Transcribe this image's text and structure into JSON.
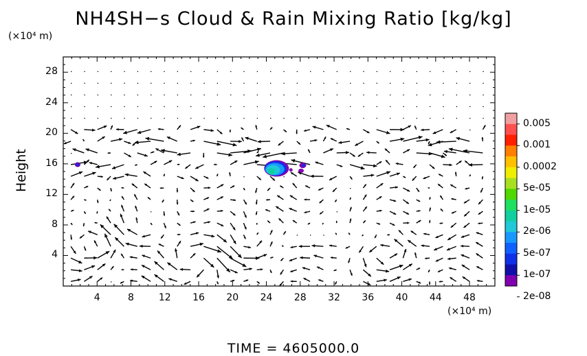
{
  "chart_data": {
    "type": "heatmap",
    "title": "NH4SH−s Cloud & Rain Mixing Ratio [kg/kg]",
    "ylabel": "Height",
    "x_unit": "(×10⁴ m)",
    "y_unit": "(×10⁴ m)",
    "time_label": "TIME  =  4605000.0",
    "x_ticks": [
      4,
      8,
      12,
      16,
      20,
      24,
      28,
      32,
      36,
      40,
      44,
      48
    ],
    "y_ticks": [
      4,
      8,
      12,
      16,
      20,
      24,
      28
    ],
    "xlim": [
      0,
      51
    ],
    "ylim": [
      0,
      30
    ],
    "grid": false,
    "colorbar": {
      "labels": [
        "0.005",
        "0.001",
        "0.0002",
        "5e-05",
        "1e-05",
        "2e-06",
        "5e-07",
        "1e-07",
        "2e-08"
      ],
      "colors": [
        "#f0a0a0",
        "#ff5050",
        "#ff2000",
        "#ff8000",
        "#ffc000",
        "#f0ee00",
        "#a8e020",
        "#50d800",
        "#20e060",
        "#10d0a0",
        "#20c8d8",
        "#1898ff",
        "#1060ff",
        "#1030e8",
        "#1010a8",
        "#8000b0"
      ]
    },
    "regions": [
      {
        "x": 1.7,
        "y": 15.9,
        "value": "2e-08"
      },
      {
        "x": 24.8,
        "y": 15.3,
        "value": "5e-07"
      },
      {
        "x": 28.2,
        "y": 15.3,
        "value": "2e-08"
      }
    ],
    "vectors": "wind velocity arrows over full domain"
  }
}
